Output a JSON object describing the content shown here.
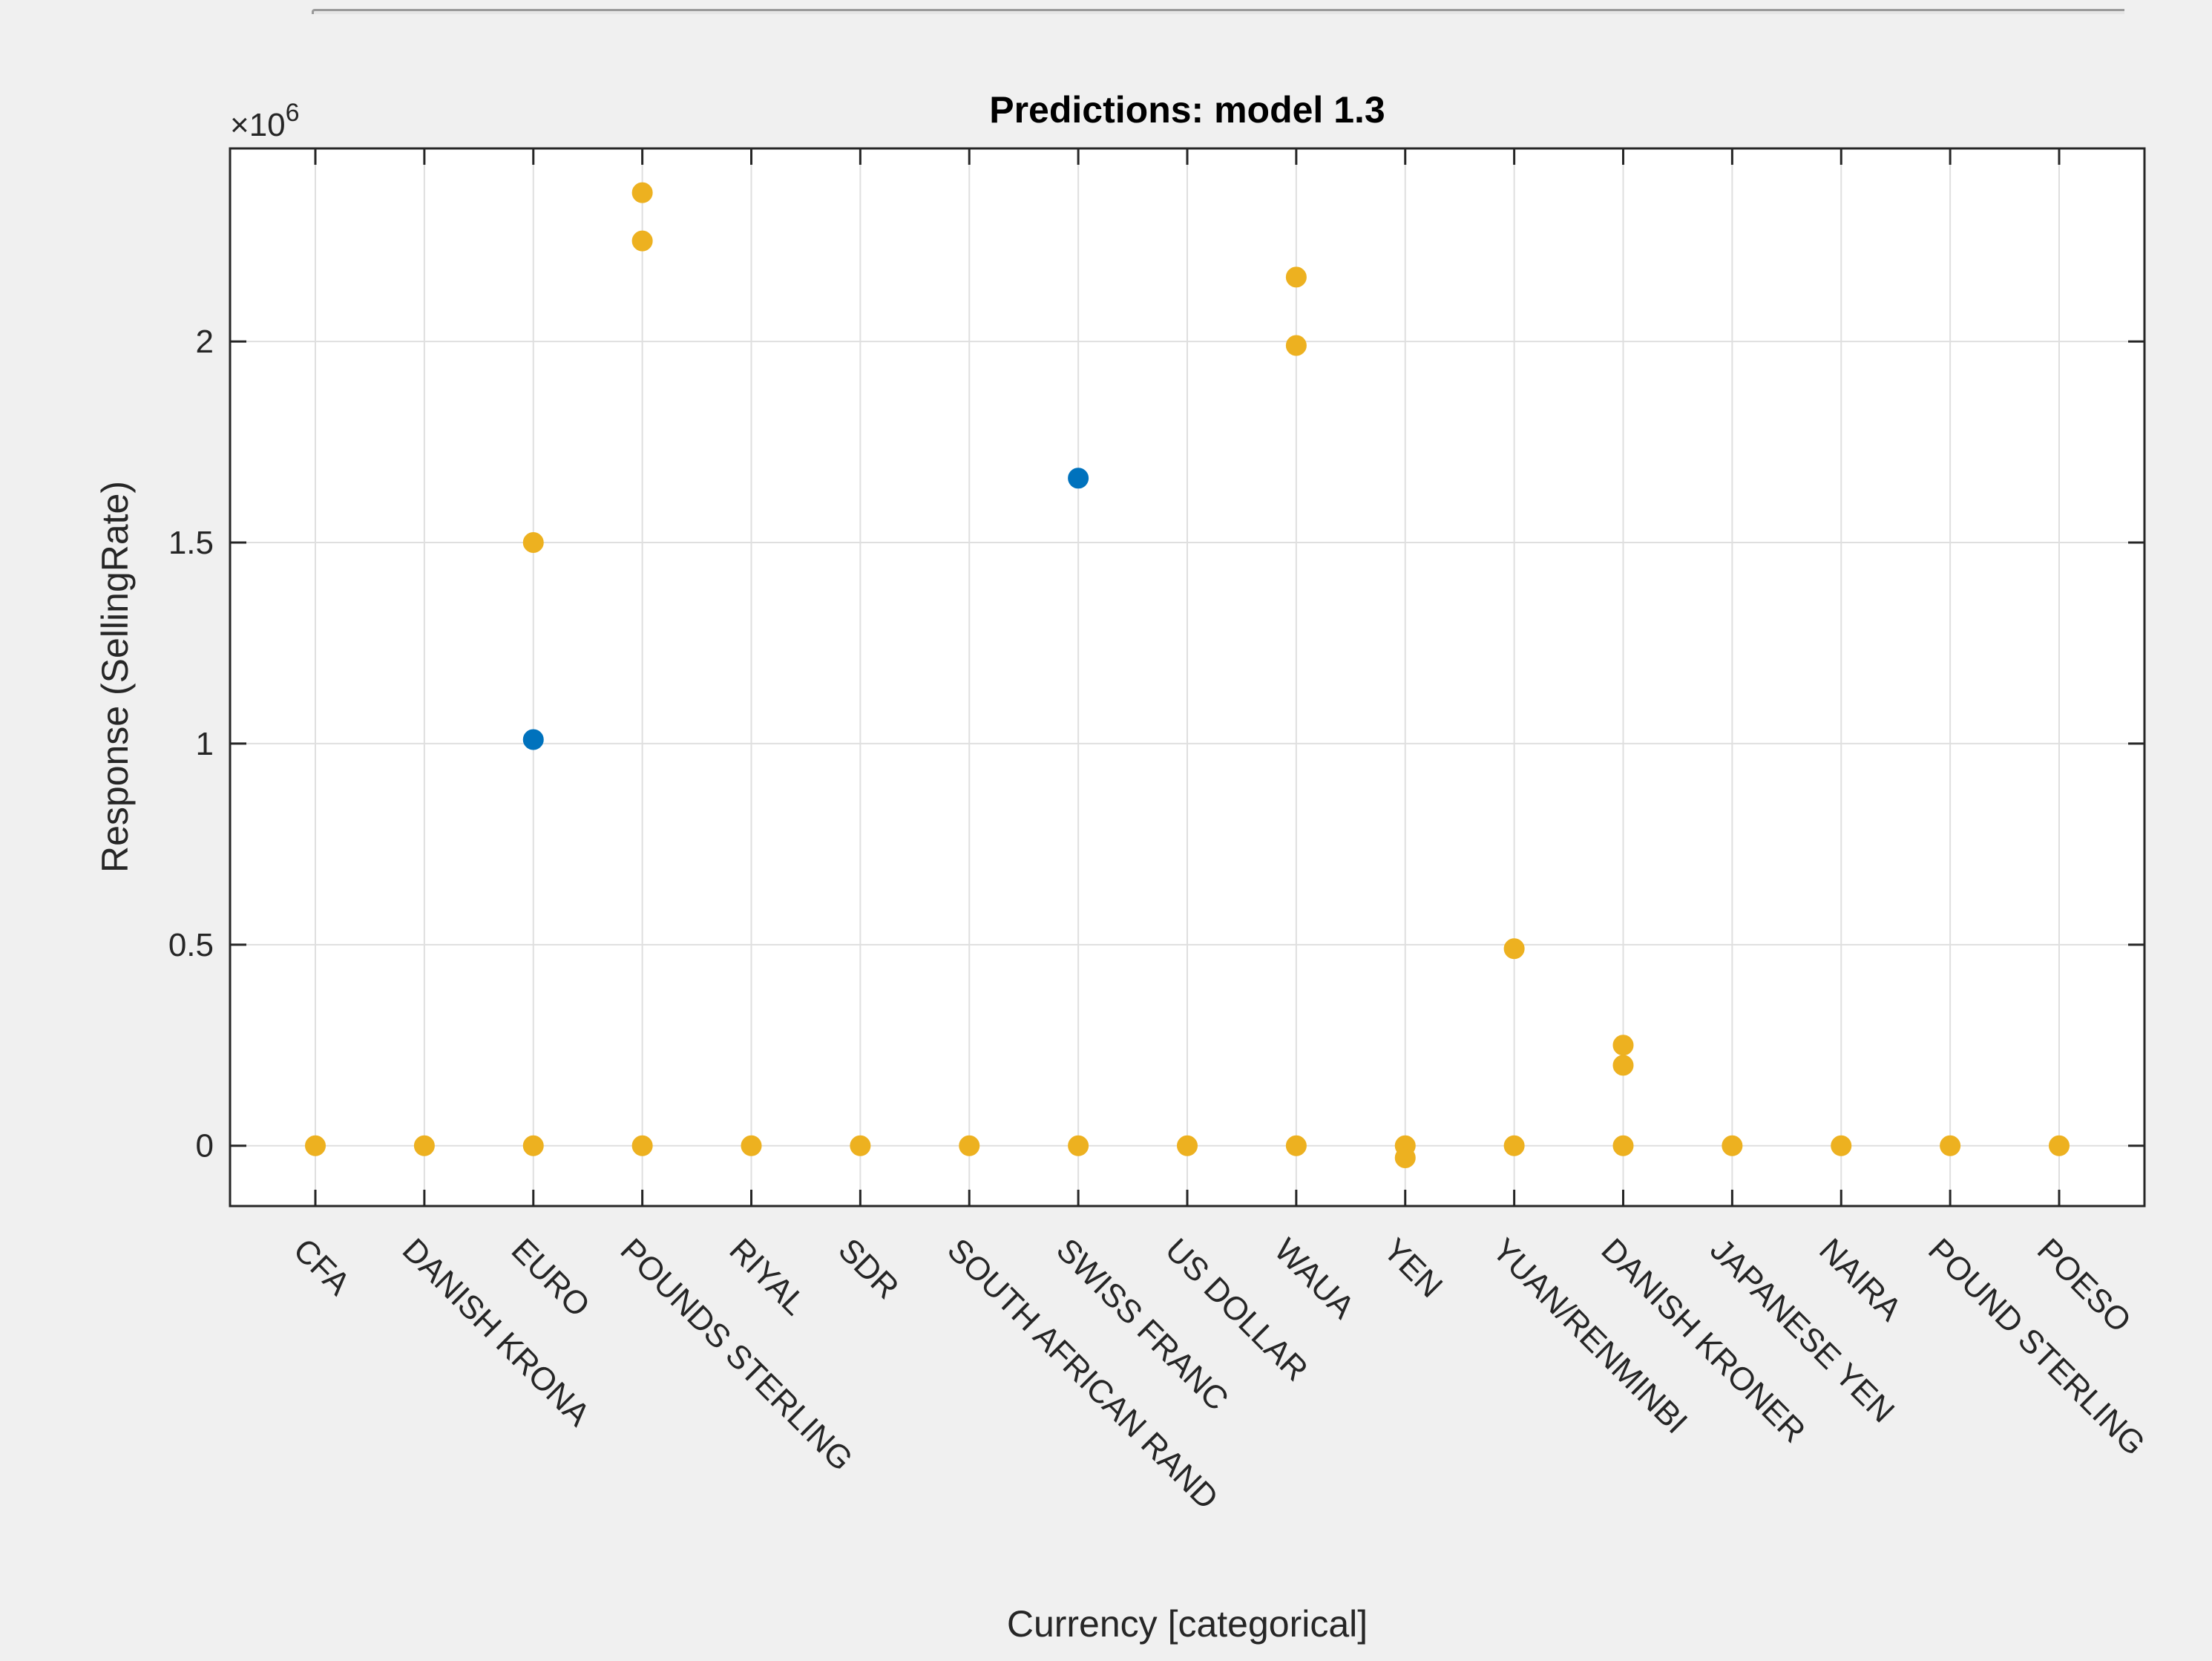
{
  "window": {
    "accent_color": "#0072bd"
  },
  "chart_data": {
    "type": "scatter",
    "title": "Predictions: model 1.3",
    "xlabel": "Currency [categorical]",
    "ylabel": "Response (SellingRate)",
    "y_exponent_label": "×10",
    "y_exponent_power": "6",
    "ylim": [
      -150000,
      2480000
    ],
    "yticks": [
      0,
      500000,
      1000000,
      1500000,
      2000000
    ],
    "ytick_labels": [
      "0",
      "0.5",
      "1",
      "1.5",
      "2"
    ],
    "grid": true,
    "categories": [
      "CFA",
      "DANISH KRONA",
      "EURO",
      "POUNDS STERLING",
      "RIYAL",
      "SDR",
      "SOUTH AFRICAN RAND",
      "SWISS FRANC",
      "US DOLLAR",
      "WAUA",
      "YEN",
      "YUAN/RENMINBI",
      "DANISH KRONER",
      "JAPANESE YEN",
      "NAIRA",
      "POUND STERLING",
      "POESO"
    ],
    "series": [
      {
        "color": "#edb120",
        "points": [
          [
            "CFA",
            0
          ],
          [
            "DANISH KRONA",
            0
          ],
          [
            "EURO",
            0
          ],
          [
            "EURO",
            1500000
          ],
          [
            "POUNDS STERLING",
            0
          ],
          [
            "POUNDS STERLING",
            2250000
          ],
          [
            "POUNDS STERLING",
            2370000
          ],
          [
            "RIYAL",
            0
          ],
          [
            "SDR",
            0
          ],
          [
            "SOUTH AFRICAN RAND",
            0
          ],
          [
            "SWISS FRANC",
            0
          ],
          [
            "US DOLLAR",
            0
          ],
          [
            "WAUA",
            0
          ],
          [
            "WAUA",
            1990000
          ],
          [
            "WAUA",
            2160000
          ],
          [
            "YEN",
            0
          ],
          [
            "YEN",
            -30000
          ],
          [
            "YUAN/RENMINBI",
            0
          ],
          [
            "YUAN/RENMINBI",
            490000
          ],
          [
            "DANISH KRONER",
            0
          ],
          [
            "DANISH KRONER",
            200000
          ],
          [
            "DANISH KRONER",
            250000
          ],
          [
            "JAPANESE YEN",
            0
          ],
          [
            "NAIRA",
            0
          ],
          [
            "POUND STERLING",
            0
          ],
          [
            "POESO",
            0
          ]
        ]
      },
      {
        "color": "#0072bd",
        "points": [
          [
            "EURO",
            1010000
          ],
          [
            "SWISS FRANC",
            1660000
          ]
        ]
      }
    ]
  }
}
